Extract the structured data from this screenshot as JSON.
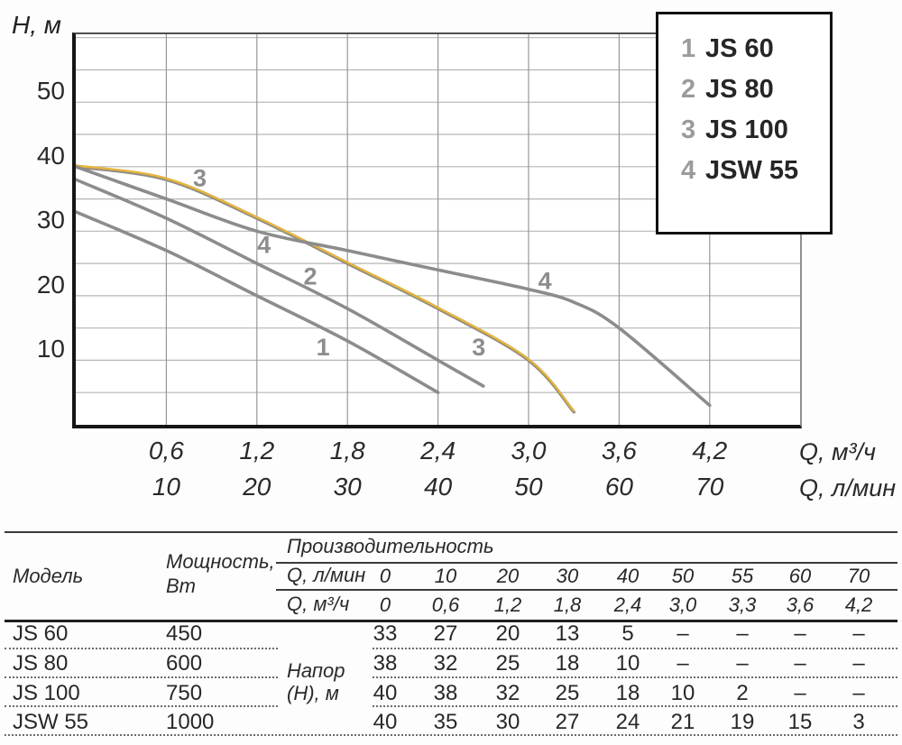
{
  "colors": {
    "curve_gray": "#8c8c8c",
    "curve_yellow": "#e7b53a",
    "grid_h": "#b6b6b6",
    "grid_v": "#989898",
    "curve_label_gray": "#8d8d8d"
  },
  "chart": {
    "y_axis_label": "H, м",
    "y_ticks": [
      "10",
      "20",
      "30",
      "40",
      "50"
    ],
    "x_ticks_m3h": [
      "0,6",
      "1,2",
      "1,8",
      "2,4",
      "3,0",
      "3,6",
      "4,2"
    ],
    "x_ticks_lmin": [
      "10",
      "20",
      "30",
      "40",
      "50",
      "60",
      "70"
    ],
    "x_unit_m3h": "Q, м³/ч",
    "x_unit_lmin": "Q, л/мин",
    "legend": [
      {
        "num": "1",
        "label": "JS 60"
      },
      {
        "num": "2",
        "label": "JS 80"
      },
      {
        "num": "3",
        "label": "JS 100"
      },
      {
        "num": "4",
        "label": "JSW 55"
      }
    ]
  },
  "chart_data": {
    "type": "line",
    "ylabel": "H, м",
    "xlabel_lmin": "Q, л/мин",
    "xlabel_m3h": "Q, м³/ч",
    "x_lmin": [
      0,
      10,
      20,
      30,
      40,
      50,
      55,
      60,
      70
    ],
    "x_m3h": [
      0,
      0.6,
      1.2,
      1.8,
      2.4,
      3.0,
      3.3,
      3.6,
      4.2
    ],
    "xlim_lmin": [
      0,
      80
    ],
    "ylim": [
      0,
      60
    ],
    "grid": true,
    "legend_position": "top-right",
    "series": [
      {
        "curve": "1",
        "name": "JS 60",
        "color": "#8c8c8c",
        "values": [
          33,
          27,
          20,
          13,
          5,
          null,
          null,
          null,
          null
        ]
      },
      {
        "curve": "2",
        "name": "JS 80",
        "color": "#8c8c8c",
        "values": [
          38,
          32,
          25,
          18,
          10,
          null,
          null,
          null,
          null
        ],
        "ext_point": [
          45,
          6
        ]
      },
      {
        "curve": "3",
        "name": "JS 100",
        "color": "#e7b53a",
        "highlight": true,
        "values": [
          40,
          38,
          32,
          25,
          18,
          10,
          2,
          null,
          null
        ]
      },
      {
        "curve": "4",
        "name": "JSW 55",
        "color": "#8c8c8c",
        "values": [
          40,
          35,
          30,
          27,
          24,
          21,
          19,
          15,
          3
        ]
      }
    ],
    "curve_labels": [
      {
        "text": "3",
        "q": 13.7,
        "h": 38.2
      },
      {
        "text": "4",
        "q": 20.8,
        "h": 27.9
      },
      {
        "text": "2",
        "q": 25.9,
        "h": 23.0
      },
      {
        "text": "1",
        "q": 27.3,
        "h": 12.0
      },
      {
        "text": "3",
        "q": 44.5,
        "h": 12.0
      },
      {
        "text": "4",
        "q": 51.8,
        "h": 22.3
      }
    ]
  },
  "table": {
    "model_header": "Модель",
    "power_header_line1": "Мощность,",
    "power_header_line2": "Вт",
    "performance_header": "Производительность",
    "q_lmin_label": "Q, л/мин",
    "q_m3h_label": "Q, м³/ч",
    "head_label_line1": "Напор",
    "head_label_line2": "(Н), м",
    "q_lmin": [
      "0",
      "10",
      "20",
      "30",
      "40",
      "50",
      "55",
      "60",
      "70"
    ],
    "q_m3h": [
      "0",
      "0,6",
      "1,2",
      "1,8",
      "2,4",
      "3,0",
      "3,3",
      "3,6",
      "4,2"
    ],
    "rows": [
      {
        "model": "JS 60",
        "power": "450",
        "values": [
          "33",
          "27",
          "20",
          "13",
          "5",
          "–",
          "–",
          "–",
          "–"
        ]
      },
      {
        "model": "JS 80",
        "power": "600",
        "values": [
          "38",
          "32",
          "25",
          "18",
          "10",
          "–",
          "–",
          "–",
          "–"
        ]
      },
      {
        "model": "JS 100",
        "power": "750",
        "values": [
          "40",
          "38",
          "32",
          "25",
          "18",
          "10",
          "2",
          "–",
          "–"
        ]
      },
      {
        "model": "JSW 55",
        "power": "1000",
        "values": [
          "40",
          "35",
          "30",
          "27",
          "24",
          "21",
          "19",
          "15",
          "3"
        ]
      }
    ]
  }
}
